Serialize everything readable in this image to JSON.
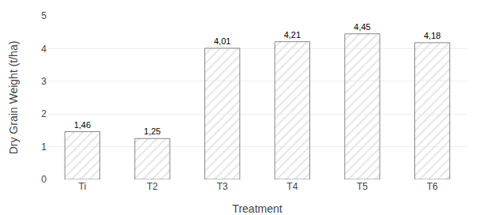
{
  "chart_data": {
    "type": "bar",
    "categories": [
      "Ti",
      "T2",
      "T3",
      "T4",
      "T5",
      "T6"
    ],
    "values": [
      1.46,
      1.25,
      4.01,
      4.21,
      4.45,
      4.18
    ],
    "value_labels": [
      "1,46",
      "1,25",
      "4,01",
      "4,21",
      "4,45",
      "4,18"
    ],
    "data_labels": true,
    "xlabel": "Treatment",
    "ylabel": "Dry Grain Weight (t/ha)",
    "ylim": [
      0,
      5
    ],
    "yticks": [
      0,
      1,
      2,
      3,
      4,
      5
    ],
    "color": "#e8e8e8",
    "grid": true
  }
}
